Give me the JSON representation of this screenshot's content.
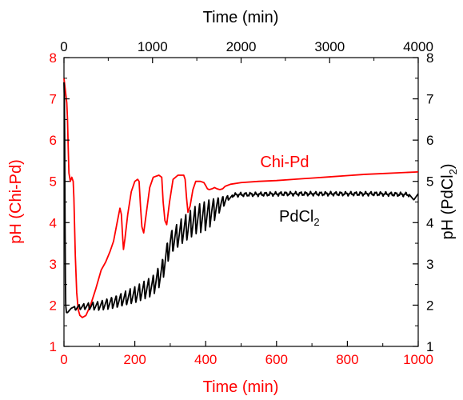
{
  "chart_data": {
    "type": "line",
    "title": "",
    "axes": {
      "bottom": {
        "label": "Time (min)",
        "range": [
          0,
          1000
        ],
        "ticks": [
          0,
          200,
          400,
          600,
          800,
          1000
        ],
        "color": "#ff0000"
      },
      "top": {
        "label": "Time (min)",
        "range": [
          0,
          4000
        ],
        "ticks": [
          0,
          1000,
          2000,
          3000,
          4000
        ],
        "color": "#000000"
      },
      "left": {
        "label": "pH (Chi-Pd)",
        "range": [
          1,
          8
        ],
        "ticks": [
          1,
          2,
          3,
          4,
          5,
          6,
          7,
          8
        ],
        "color": "#ff0000"
      },
      "right": {
        "label_main": "pH (PdCl",
        "label_sub": "2",
        "label_end": ")",
        "range": [
          1,
          8
        ],
        "ticks": [
          1,
          2,
          3,
          4,
          5,
          6,
          7,
          8
        ],
        "color": "#000000"
      }
    },
    "grid": false,
    "series": [
      {
        "name": "Chi-Pd",
        "label_text": "Chi-Pd",
        "color": "#ff0000",
        "x_axis": "bottom",
        "y_axis": "left",
        "points": [
          [
            0,
            7.5
          ],
          [
            4,
            7.2
          ],
          [
            8,
            6.9
          ],
          [
            10,
            6.5
          ],
          [
            12,
            5.8
          ],
          [
            14,
            5.2
          ],
          [
            18,
            5.0
          ],
          [
            22,
            5.1
          ],
          [
            26,
            5.0
          ],
          [
            28,
            4.6
          ],
          [
            32,
            3.2
          ],
          [
            36,
            2.3
          ],
          [
            40,
            1.9
          ],
          [
            45,
            1.75
          ],
          [
            52,
            1.7
          ],
          [
            62,
            1.75
          ],
          [
            75,
            2.0
          ],
          [
            90,
            2.4
          ],
          [
            105,
            2.85
          ],
          [
            118,
            3.05
          ],
          [
            130,
            3.3
          ],
          [
            140,
            3.55
          ],
          [
            150,
            4.0
          ],
          [
            158,
            4.35
          ],
          [
            162,
            4.2
          ],
          [
            166,
            3.6
          ],
          [
            168,
            3.35
          ],
          [
            172,
            3.6
          ],
          [
            180,
            4.2
          ],
          [
            190,
            4.75
          ],
          [
            200,
            5.0
          ],
          [
            208,
            5.05
          ],
          [
            212,
            5.0
          ],
          [
            216,
            4.4
          ],
          [
            220,
            3.9
          ],
          [
            225,
            3.75
          ],
          [
            232,
            4.2
          ],
          [
            242,
            4.85
          ],
          [
            252,
            5.1
          ],
          [
            268,
            5.15
          ],
          [
            276,
            5.1
          ],
          [
            280,
            4.5
          ],
          [
            285,
            4.05
          ],
          [
            290,
            3.95
          ],
          [
            298,
            4.5
          ],
          [
            308,
            5.05
          ],
          [
            322,
            5.15
          ],
          [
            338,
            5.15
          ],
          [
            342,
            5.05
          ],
          [
            346,
            4.6
          ],
          [
            350,
            4.25
          ],
          [
            356,
            4.4
          ],
          [
            364,
            4.8
          ],
          [
            372,
            5.0
          ],
          [
            385,
            5.0
          ],
          [
            395,
            4.97
          ],
          [
            400,
            4.9
          ],
          [
            405,
            4.82
          ],
          [
            410,
            4.8
          ],
          [
            418,
            4.82
          ],
          [
            425,
            4.85
          ],
          [
            432,
            4.82
          ],
          [
            440,
            4.8
          ],
          [
            448,
            4.82
          ],
          [
            455,
            4.88
          ],
          [
            470,
            4.93
          ],
          [
            500,
            4.97
          ],
          [
            550,
            5.0
          ],
          [
            600,
            5.02
          ],
          [
            650,
            5.05
          ],
          [
            700,
            5.08
          ],
          [
            750,
            5.11
          ],
          [
            800,
            5.14
          ],
          [
            850,
            5.17
          ],
          [
            900,
            5.19
          ],
          [
            950,
            5.21
          ],
          [
            1000,
            5.23
          ]
        ]
      },
      {
        "name": "PdCl2",
        "label_main": "PdCl",
        "label_sub": "2",
        "color": "#000000",
        "x_axis": "top",
        "y_axis": "right",
        "osc_note": "sawtooth oscillations between t_start and t_end",
        "base_points": [
          [
            0,
            7.4
          ],
          [
            4,
            7.1
          ],
          [
            8,
            6.0
          ],
          [
            12,
            4.0
          ],
          [
            16,
            2.6
          ],
          [
            20,
            2.0
          ],
          [
            28,
            1.82
          ],
          [
            40,
            1.82
          ],
          [
            80,
            1.92
          ],
          [
            150,
            2.0
          ],
          [
            250,
            2.05
          ],
          [
            400,
            2.1
          ],
          [
            600,
            2.25
          ],
          [
            800,
            2.45
          ],
          [
            1000,
            2.72
          ],
          [
            1100,
            3.05
          ],
          [
            1200,
            3.8
          ],
          [
            1350,
            4.15
          ],
          [
            1500,
            4.45
          ],
          [
            1650,
            4.6
          ],
          [
            1800,
            4.65
          ],
          [
            2000,
            4.68
          ],
          [
            2500,
            4.7
          ],
          [
            3000,
            4.7
          ],
          [
            3500,
            4.7
          ],
          [
            3900,
            4.68
          ],
          [
            3950,
            4.55
          ],
          [
            4000,
            4.7
          ]
        ],
        "osc_spans": [
          {
            "t0": 120,
            "t1": 1900,
            "n": 34,
            "amp0": 0.1,
            "amp1": 0.75
          }
        ]
      }
    ]
  }
}
